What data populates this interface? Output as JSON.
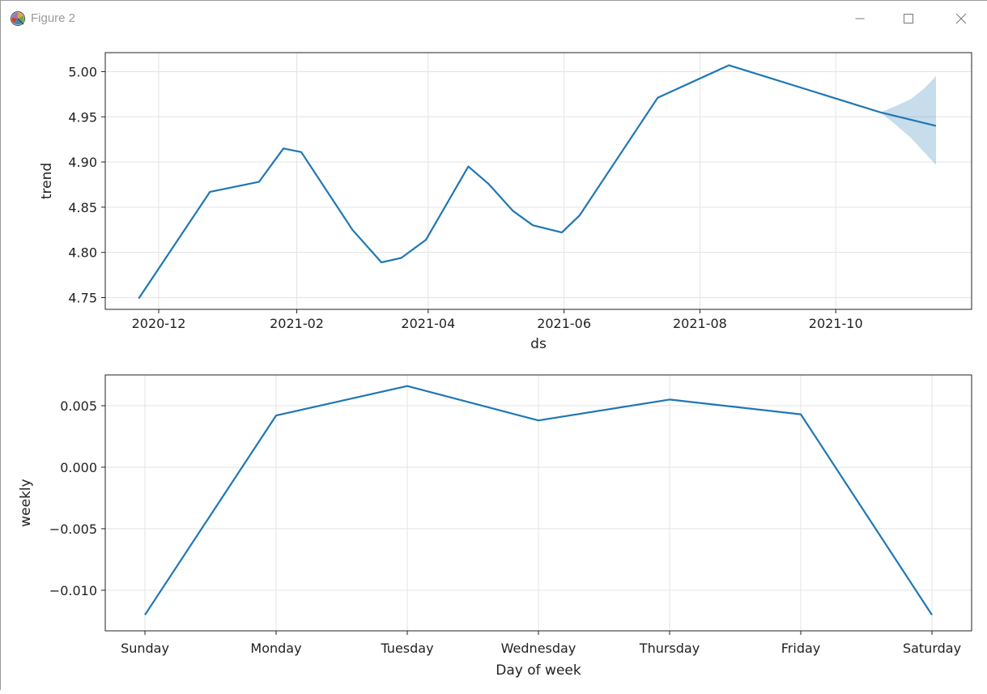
{
  "window": {
    "title": "Figure 2"
  },
  "chart_data": [
    {
      "type": "line",
      "xlabel": "ds",
      "ylabel": "trend",
      "xtick_labels": [
        "2020-12",
        "2021-02",
        "2021-04",
        "2021-06",
        "2021-08",
        "2021-10"
      ],
      "xtick_dates": [
        "2020-12-01",
        "2021-02-01",
        "2021-04-01",
        "2021-06-01",
        "2021-08-01",
        "2021-10-01"
      ],
      "xlim": [
        "2020-11-07",
        "2021-12-01"
      ],
      "ylim": [
        4.737,
        5.021
      ],
      "yticks": [
        4.75,
        4.8,
        4.85,
        4.9,
        4.95,
        5.0
      ],
      "ytick_labels": [
        "4.75",
        "4.80",
        "4.85",
        "4.90",
        "4.95",
        "5.00"
      ],
      "grid": true,
      "line_color": "#1f77b4",
      "band_color": "#1f77b4",
      "series": [
        {
          "x": [
            "2020-11-22",
            "2020-12-24",
            "2021-01-15",
            "2021-01-26",
            "2021-02-03",
            "2021-02-26",
            "2021-03-11",
            "2021-03-20",
            "2021-03-31",
            "2021-04-19",
            "2021-04-28",
            "2021-05-09",
            "2021-05-18",
            "2021-05-31",
            "2021-06-08",
            "2021-07-13",
            "2021-08-14",
            "2021-10-21",
            "2021-11-15"
          ],
          "y": [
            4.749,
            4.867,
            4.878,
            4.915,
            4.911,
            4.825,
            4.789,
            4.794,
            4.814,
            4.895,
            4.876,
            4.846,
            4.83,
            4.822,
            4.841,
            4.971,
            5.007,
            4.955,
            4.94
          ]
        }
      ],
      "uncertainty_band": {
        "x": [
          "2021-10-21",
          "2021-10-28",
          "2021-11-04",
          "2021-11-10",
          "2021-11-15"
        ],
        "upper": [
          4.955,
          4.962,
          4.97,
          4.982,
          4.995
        ],
        "lower": [
          4.955,
          4.941,
          4.926,
          4.91,
          4.897
        ]
      }
    },
    {
      "type": "line",
      "xlabel": "Day of week",
      "ylabel": "weekly",
      "categories": [
        "Sunday",
        "Monday",
        "Tuesday",
        "Wednesday",
        "Thursday",
        "Friday",
        "Saturday"
      ],
      "values": [
        -0.012,
        0.0042,
        0.0066,
        0.0038,
        0.0055,
        0.0043,
        -0.012
      ],
      "ylim": [
        -0.0133,
        0.0075
      ],
      "yticks": [
        -0.01,
        -0.005,
        0.0,
        0.005
      ],
      "ytick_labels": [
        "−0.010",
        "−0.005",
        "0.000",
        "0.005"
      ],
      "grid": true,
      "line_color": "#1f77b4"
    }
  ]
}
